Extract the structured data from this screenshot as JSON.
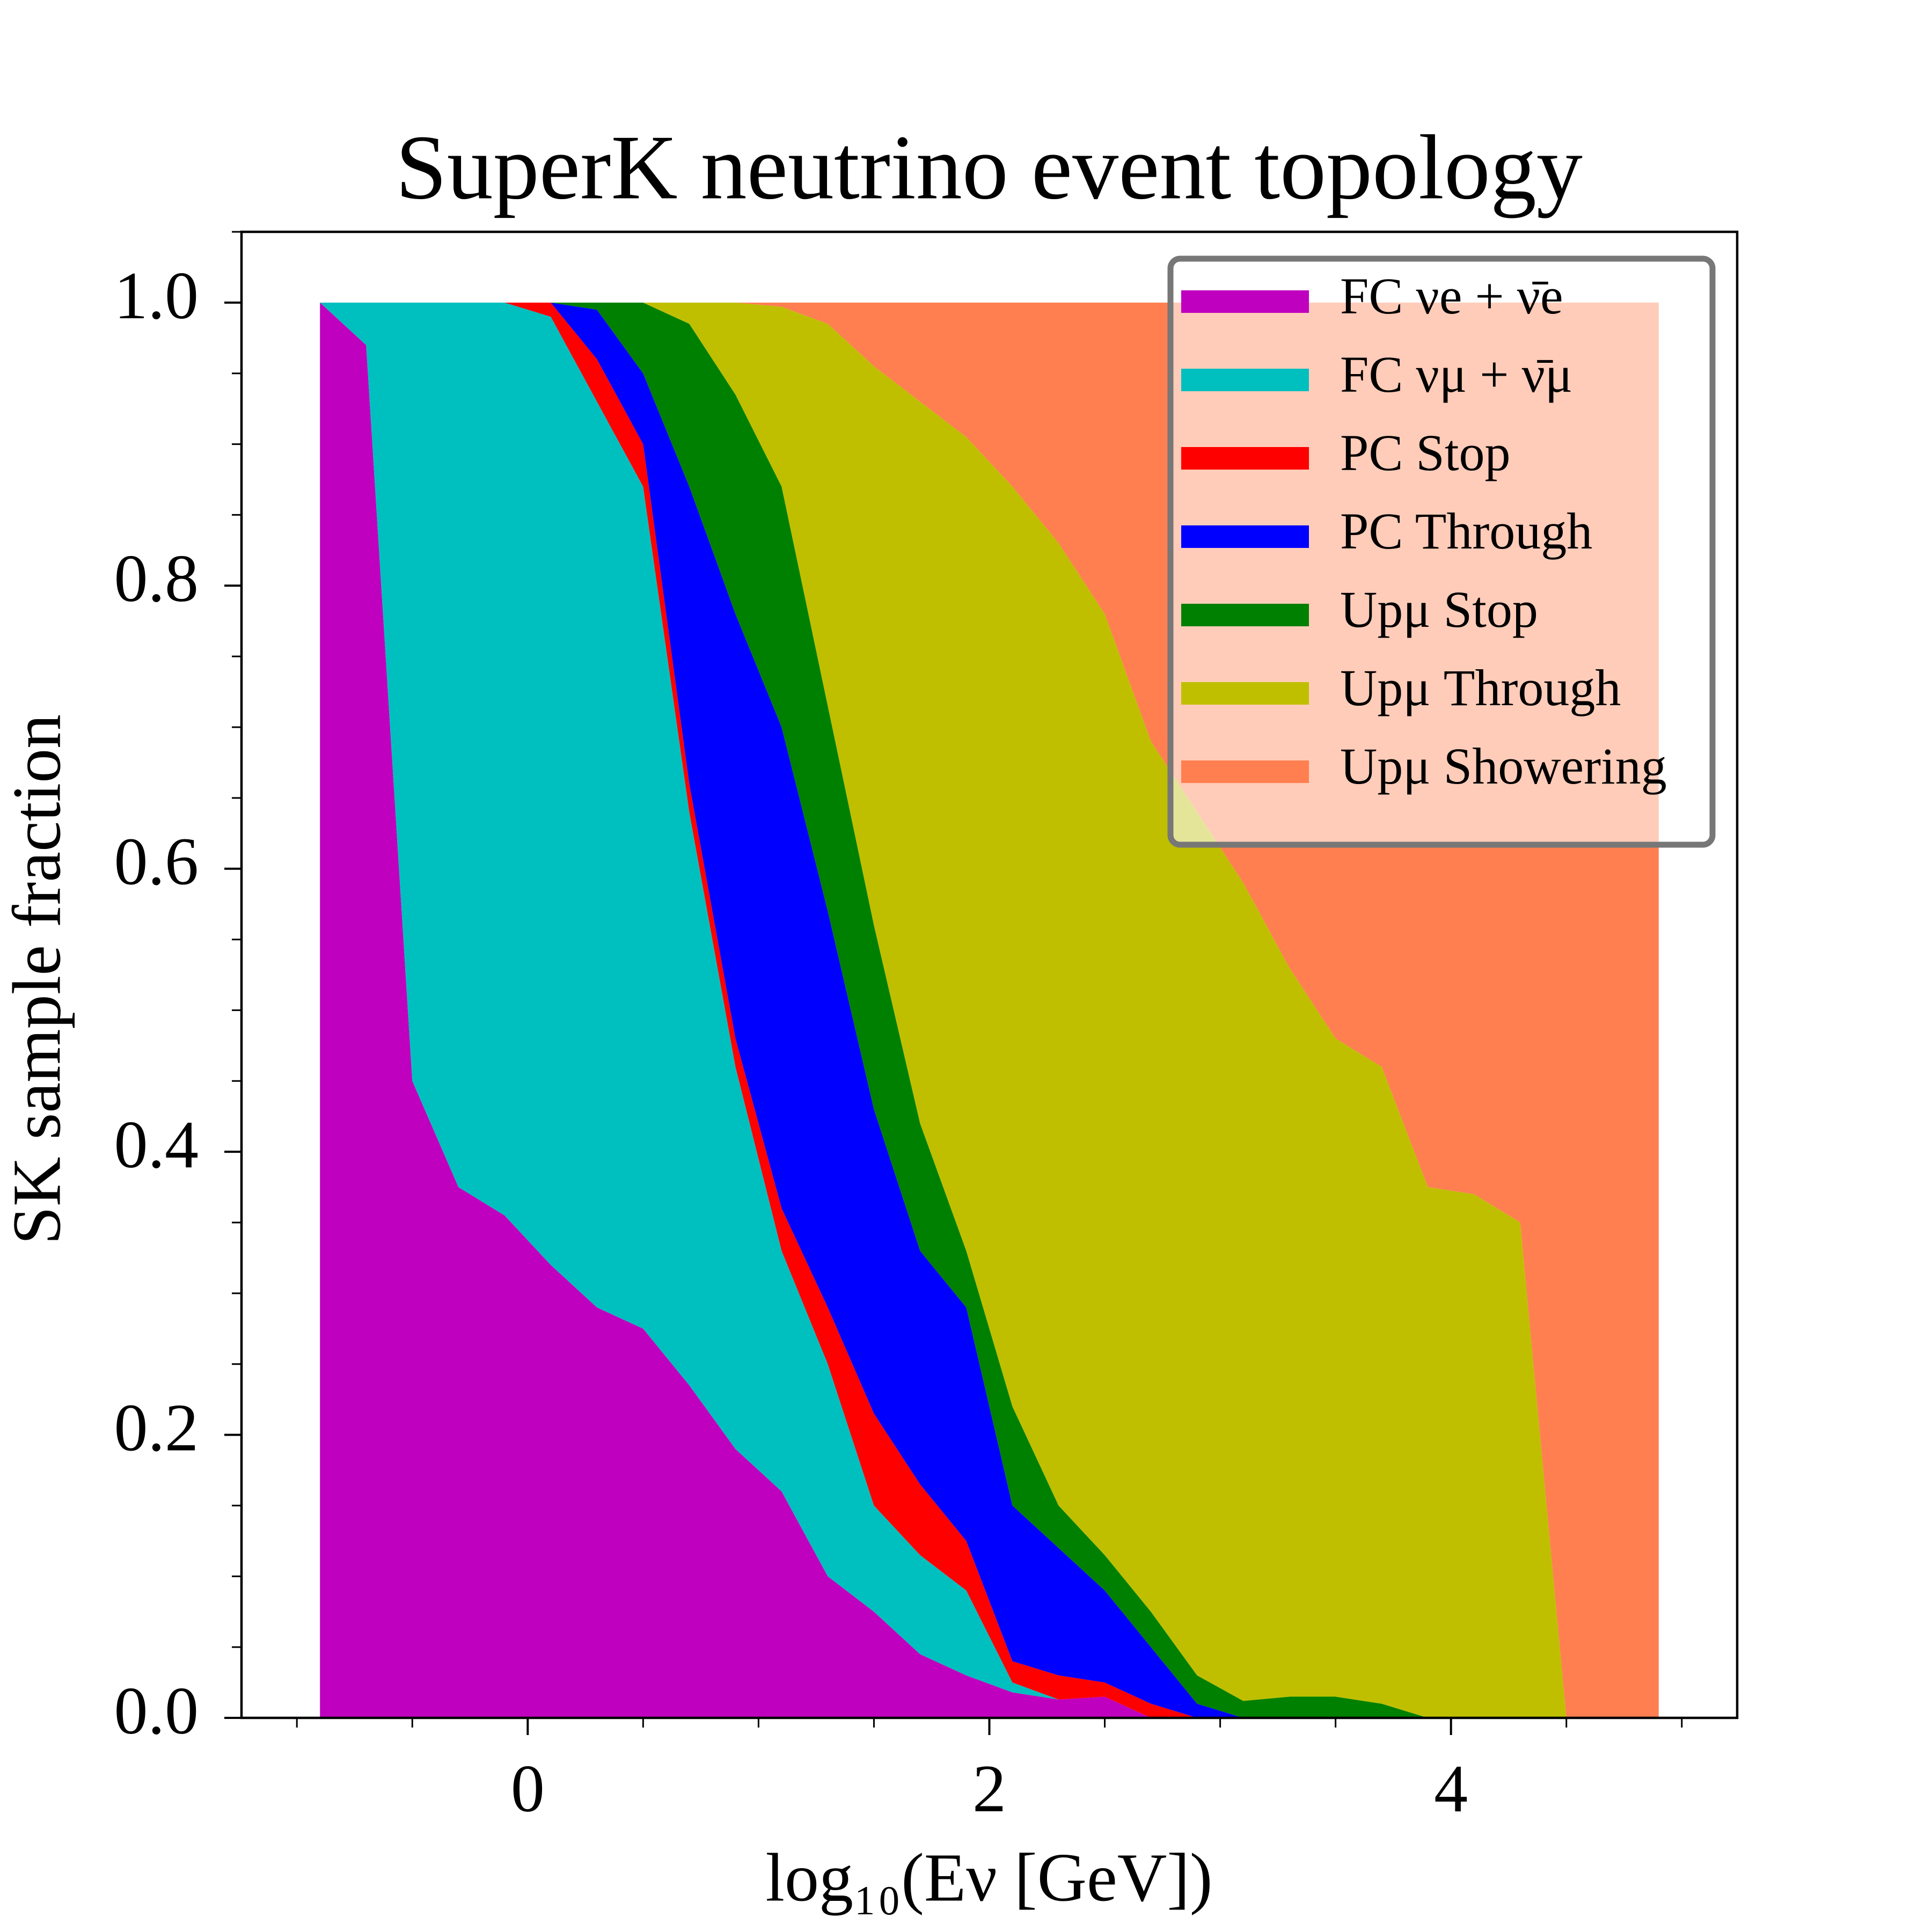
{
  "chart_data": {
    "type": "stackedarea",
    "title": "SuperK neutrino event topology",
    "xlabel": "log₁₀(Eν [GeV])",
    "ylabel": "SK sample fraction",
    "x": [
      -0.9,
      -0.7,
      -0.5,
      -0.3,
      -0.1,
      0.1,
      0.3,
      0.5,
      0.7,
      0.9,
      1.1,
      1.3,
      1.5,
      1.7,
      1.9,
      2.1,
      2.3,
      2.5,
      2.7,
      2.9,
      3.1,
      3.3,
      3.5,
      3.7,
      3.9,
      4.1,
      4.3,
      4.5,
      4.7,
      4.9
    ],
    "series": [
      {
        "name": "FC νe + ν̄e",
        "color": "#bf00bf",
        "values": [
          1,
          0.97,
          0.45,
          0.375,
          0.355,
          0.32,
          0.29,
          0.275,
          0.235,
          0.19,
          0.16,
          0.1,
          0.075,
          0.045,
          0.03,
          0.018,
          0.013,
          0.015,
          0,
          0,
          0,
          0,
          0,
          0,
          0,
          0,
          0,
          0,
          0,
          0
        ]
      },
      {
        "name": "FC νμ + ν̄μ",
        "color": "#00bfbf",
        "values": [
          0,
          0.03,
          0.55,
          0.625,
          0.645,
          0.67,
          0.64,
          0.595,
          0.405,
          0.27,
          0.17,
          0.15,
          0.075,
          0.07,
          0.06,
          0.007,
          0,
          0,
          0,
          0,
          0,
          0,
          0,
          0,
          0,
          0,
          0,
          0,
          0,
          0
        ]
      },
      {
        "name": "PC Stop",
        "color": "#ff0000",
        "values": [
          0,
          0,
          0,
          0,
          0,
          0.01,
          0.03,
          0.03,
          0.02,
          0.02,
          0.03,
          0.04,
          0.065,
          0.05,
          0.035,
          0.015,
          0.017,
          0.01,
          0.01,
          0,
          0,
          0,
          0,
          0,
          0,
          0,
          0,
          0,
          0,
          0
        ]
      },
      {
        "name": "PC Through",
        "color": "#0000ff",
        "values": [
          0,
          0,
          0,
          0,
          0,
          0,
          0.035,
          0.05,
          0.21,
          0.3,
          0.34,
          0.28,
          0.215,
          0.165,
          0.165,
          0.11,
          0.09,
          0.065,
          0.04,
          0.01,
          0,
          0,
          0,
          0,
          0,
          0,
          0,
          0,
          0,
          0
        ]
      },
      {
        "name": "Upμ Stop",
        "color": "#008000",
        "values": [
          0,
          0,
          0,
          0,
          0,
          0,
          0.005,
          0.05,
          0.115,
          0.155,
          0.17,
          0.145,
          0.13,
          0.09,
          0.04,
          0.07,
          0.03,
          0.025,
          0.025,
          0.02,
          0.012,
          0.015,
          0.015,
          0.01,
          0,
          0,
          0,
          0,
          0,
          0
        ]
      },
      {
        "name": "Upμ Through",
        "color": "#bfbf00",
        "values": [
          0,
          0,
          0,
          0,
          0,
          0,
          0,
          0,
          0.015,
          0.065,
          0.127,
          0.27,
          0.395,
          0.51,
          0.575,
          0.65,
          0.68,
          0.665,
          0.615,
          0.61,
          0.578,
          0.515,
          0.465,
          0.45,
          0.375,
          0.37,
          0.35,
          0,
          0,
          0
        ]
      },
      {
        "name": "Upμ Showering",
        "color": "#ff7f50",
        "values": [
          0,
          0,
          0,
          0,
          0,
          0,
          0,
          0,
          0,
          0,
          0.003,
          0.015,
          0.045,
          0.07,
          0.095,
          0.13,
          0.17,
          0.22,
          0.31,
          0.36,
          0.41,
          0.47,
          0.52,
          0.54,
          0.625,
          0.63,
          0.65,
          1,
          1,
          1
        ]
      }
    ],
    "xlim": [
      -1.24,
      5.24
    ],
    "ylim": [
      0,
      1.05
    ],
    "xticks": [
      0,
      2,
      4
    ],
    "xminorticks": [
      -1,
      -0.5,
      0.5,
      1,
      1.5,
      2.5,
      3,
      3.5,
      4.5,
      5
    ],
    "yticks": [
      {
        "value": 0,
        "label": "0.0"
      },
      {
        "value": 0.2,
        "label": "0.2"
      },
      {
        "value": 0.4,
        "label": "0.4"
      },
      {
        "value": 0.6,
        "label": "0.6"
      },
      {
        "value": 0.8,
        "label": "0.8"
      },
      {
        "value": 1,
        "label": "1.0"
      }
    ],
    "yminorticks": [
      0.05,
      0.1,
      0.15,
      0.25,
      0.3,
      0.35,
      0.45,
      0.5,
      0.55,
      0.65,
      0.7,
      0.75,
      0.85,
      0.9,
      0.95,
      1.05
    ],
    "legend": "upper right"
  }
}
